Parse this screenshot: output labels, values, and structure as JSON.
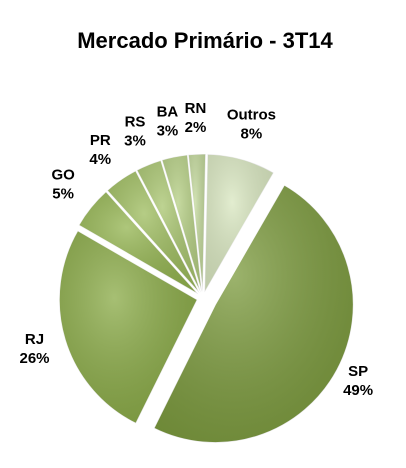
{
  "chart_data": {
    "type": "pie",
    "title": "Mercado Primário - 3T14",
    "categories": [
      "SP",
      "RJ",
      "GO",
      "PR",
      "RS",
      "BA",
      "RN",
      "Outros"
    ],
    "values": [
      49,
      26,
      5,
      4,
      3,
      3,
      2,
      8
    ],
    "value_labels": [
      "49%",
      "26%",
      "5%",
      "4%",
      "3%",
      "3%",
      "2%",
      "8%"
    ],
    "colors": [
      "#7b9a3c",
      "#89aa45",
      "#93b44f",
      "#9dbc5d",
      "#a8c56e",
      "#b4ce82",
      "#c2d89a",
      "#d9e7c0"
    ]
  }
}
